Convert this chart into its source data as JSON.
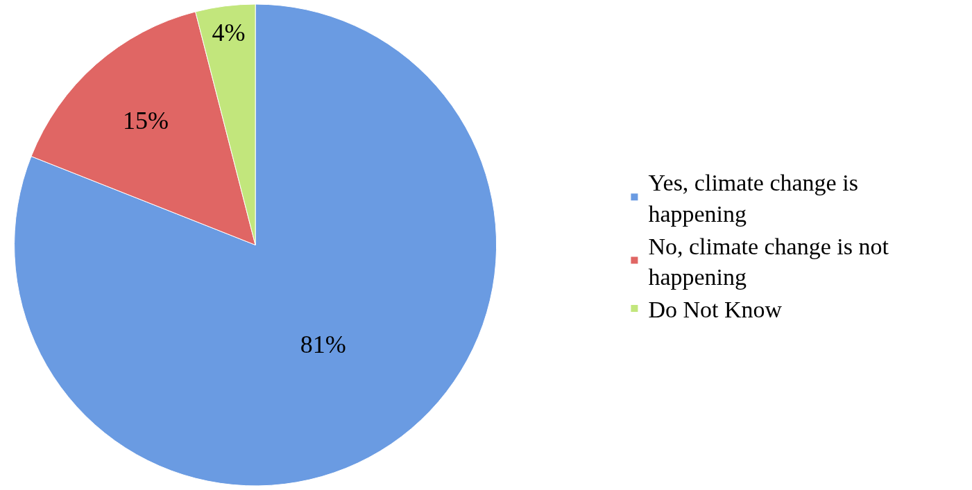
{
  "chart_data": {
    "type": "pie",
    "categories": [
      "Yes, climate change is happening",
      "No, climate change is not happening",
      "Do Not Know"
    ],
    "values": [
      81,
      15,
      4
    ],
    "colors": [
      "#6a9be2",
      "#e06664",
      "#c2e67c"
    ],
    "value_labels": [
      "81%",
      "15%",
      "4%"
    ],
    "legend": "right"
  }
}
